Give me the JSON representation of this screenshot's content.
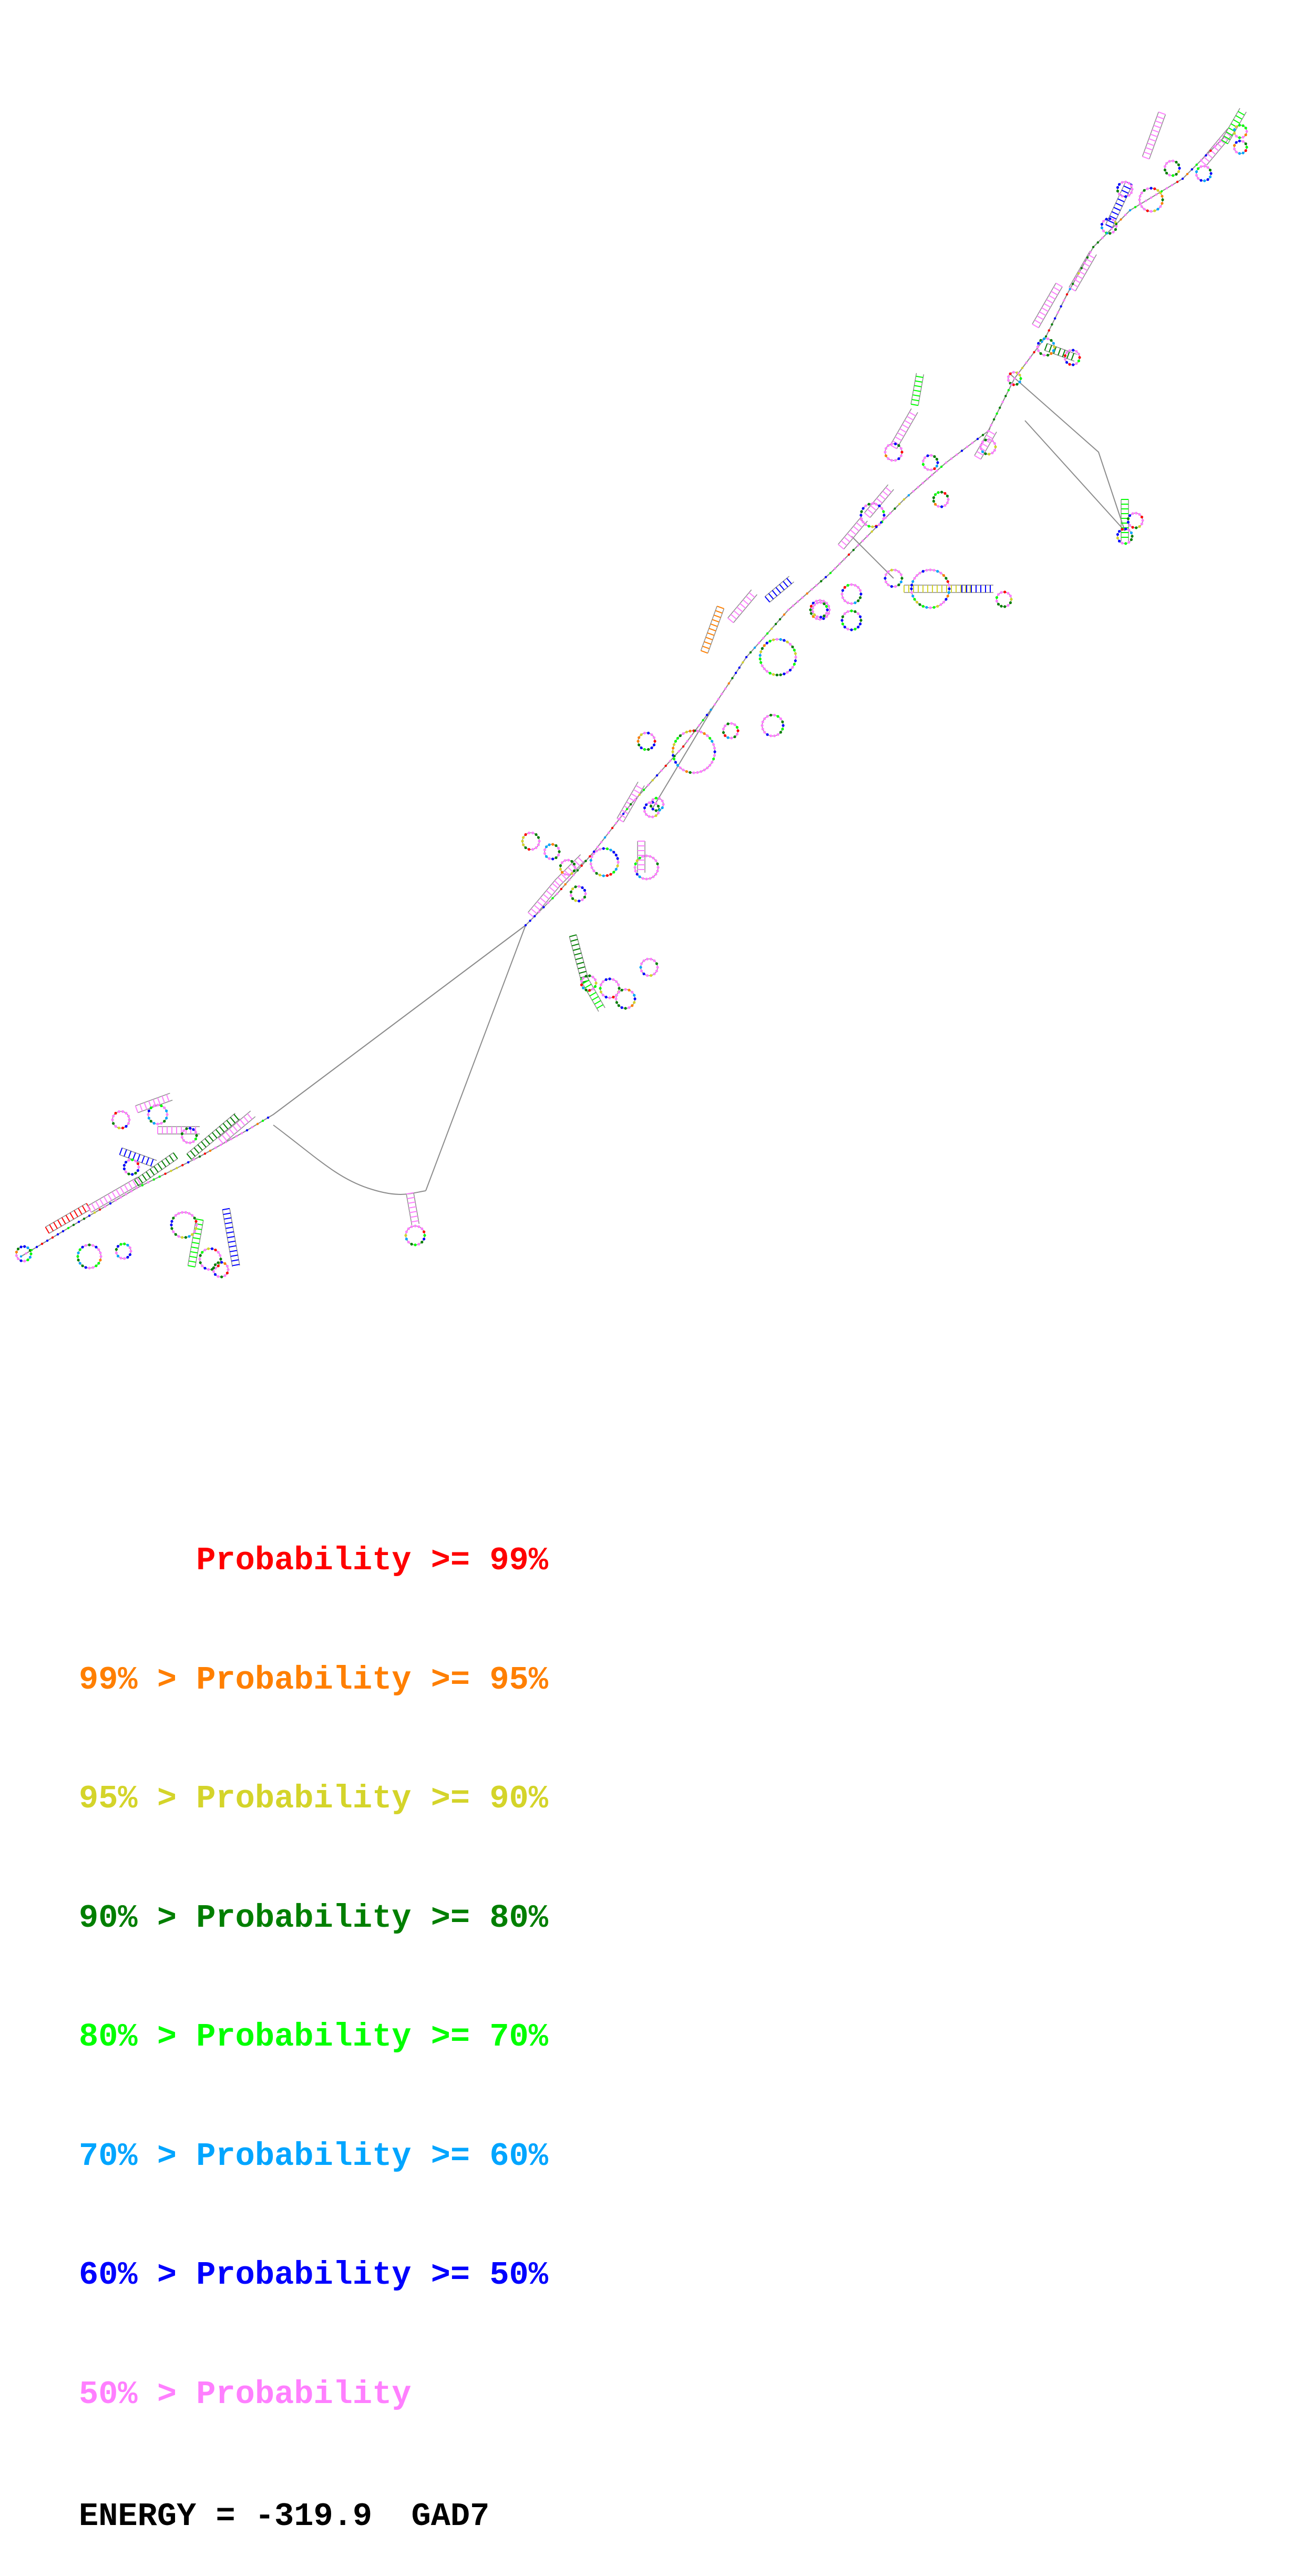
{
  "legend": {
    "lines": [
      {
        "text": "      Probability >= 99%",
        "color": "#ff0000"
      },
      {
        "text": "99% > Probability >= 95%",
        "color": "#ff7f00"
      },
      {
        "text": "95% > Probability >= 90%",
        "color": "#d4d42a"
      },
      {
        "text": "90% > Probability >= 80%",
        "color": "#007f00"
      },
      {
        "text": "80% > Probability >= 70%",
        "color": "#00ff00"
      },
      {
        "text": "70% > Probability >= 60%",
        "color": "#00a5ff"
      },
      {
        "text": "60% > Probability >= 50%",
        "color": "#0000ff"
      },
      {
        "text": "50% > Probability",
        "color": "#ff7fff"
      }
    ]
  },
  "energy": {
    "text": "ENERGY = -319.9  GAD7"
  },
  "structure": {
    "molecule": "GAD7",
    "colors": {
      "backbone": "#8c8c8c",
      "p99": "#ff0000",
      "p95": "#ff7f00",
      "p90": "#d4d42a",
      "p80": "#007f00",
      "p70": "#00ff00",
      "p60": "#00a5ff",
      "p50": "#0000ff",
      "plow": "#ff7fff"
    }
  }
}
